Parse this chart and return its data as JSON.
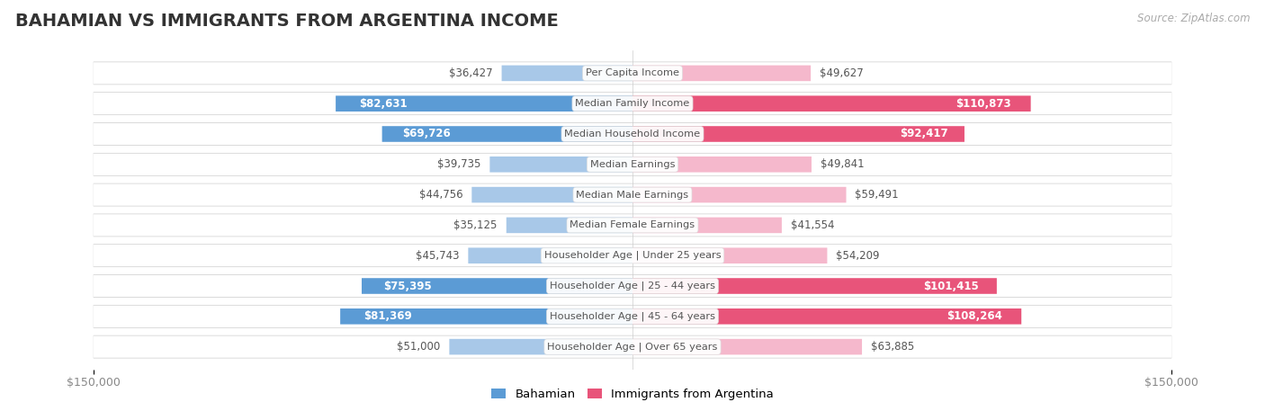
{
  "title": "BAHAMIAN VS IMMIGRANTS FROM ARGENTINA INCOME",
  "source": "Source: ZipAtlas.com",
  "categories": [
    "Per Capita Income",
    "Median Family Income",
    "Median Household Income",
    "Median Earnings",
    "Median Male Earnings",
    "Median Female Earnings",
    "Householder Age | Under 25 years",
    "Householder Age | 25 - 44 years",
    "Householder Age | 45 - 64 years",
    "Householder Age | Over 65 years"
  ],
  "bahamian_values": [
    36427,
    82631,
    69726,
    39735,
    44756,
    35125,
    45743,
    75395,
    81369,
    51000
  ],
  "argentina_values": [
    49627,
    110873,
    92417,
    49841,
    59491,
    41554,
    54209,
    101415,
    108264,
    63885
  ],
  "bahamian_labels": [
    "$36,427",
    "$82,631",
    "$69,726",
    "$39,735",
    "$44,756",
    "$35,125",
    "$45,743",
    "$75,395",
    "$81,369",
    "$51,000"
  ],
  "argentina_labels": [
    "$49,627",
    "$110,873",
    "$92,417",
    "$49,841",
    "$59,491",
    "$41,554",
    "$54,209",
    "$101,415",
    "$108,264",
    "$63,885"
  ],
  "max_value": 150000,
  "bahamian_color_light": "#a8c8e8",
  "bahamian_color_dark": "#5b9bd5",
  "argentina_color_light": "#f5b8cc",
  "argentina_color_dark": "#e8547a",
  "bar_height": 0.52,
  "label_fontsize": 8.5,
  "cat_fontsize": 8.2,
  "title_fontsize": 14,
  "bah_dark_threshold": 55000,
  "arg_dark_threshold": 75000
}
